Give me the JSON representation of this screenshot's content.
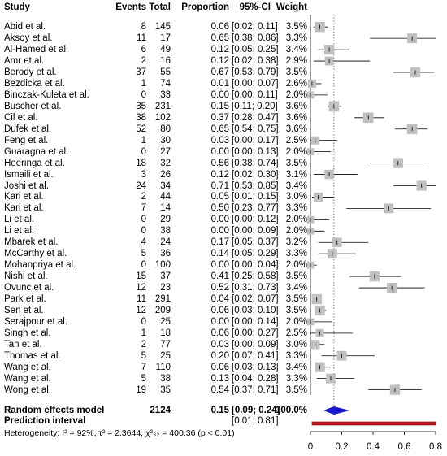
{
  "headers": {
    "study": "Study",
    "events": "Events",
    "total": "Total",
    "proportion": "Proportion",
    "ci": "95%-CI",
    "weight": "Weight"
  },
  "studies": [
    {
      "study": "Abid et al.",
      "events": "8",
      "total": "145",
      "proportion": "0.06",
      "ci": "[0.02; 0.11]",
      "weight": "3.5%"
    },
    {
      "study": "Aksoy et al.",
      "events": "11",
      "total": "17",
      "proportion": "0.65",
      "ci": "[0.38; 0.86]",
      "weight": "3.3%"
    },
    {
      "study": "Al-Hamed et al.",
      "events": "6",
      "total": "49",
      "proportion": "0.12",
      "ci": "[0.05; 0.25]",
      "weight": "3.4%"
    },
    {
      "study": "Amr et al.",
      "events": "2",
      "total": "16",
      "proportion": "0.12",
      "ci": "[0.02; 0.38]",
      "weight": "2.9%"
    },
    {
      "study": "Berody et al.",
      "events": "37",
      "total": "55",
      "proportion": "0.67",
      "ci": "[0.53; 0.79]",
      "weight": "3.5%"
    },
    {
      "study": "Bezdicka et al.",
      "events": "1",
      "total": "74",
      "proportion": "0.01",
      "ci": "[0.00; 0.07]",
      "weight": "2.6%"
    },
    {
      "study": "Binczak-Kuleta et al.",
      "events": "0",
      "total": "33",
      "proportion": "0.00",
      "ci": "[0.00; 0.11]",
      "weight": "2.0%"
    },
    {
      "study": "Buscher et al.",
      "events": "35",
      "total": "231",
      "proportion": "0.15",
      "ci": "[0.11; 0.20]",
      "weight": "3.6%"
    },
    {
      "study": "Cil et al.",
      "events": "38",
      "total": "102",
      "proportion": "0.37",
      "ci": "[0.28; 0.47]",
      "weight": "3.6%"
    },
    {
      "study": "Dufek et al.",
      "events": "52",
      "total": "80",
      "proportion": "0.65",
      "ci": "[0.54; 0.75]",
      "weight": "3.6%"
    },
    {
      "study": "Feng et al.",
      "events": "1",
      "total": "30",
      "proportion": "0.03",
      "ci": "[0.00; 0.17]",
      "weight": "2.5%"
    },
    {
      "study": "Guaragna et al.",
      "events": "0",
      "total": "27",
      "proportion": "0.00",
      "ci": "[0.00; 0.13]",
      "weight": "2.0%"
    },
    {
      "study": "Heeringa et al.",
      "events": "18",
      "total": "32",
      "proportion": "0.56",
      "ci": "[0.38; 0.74]",
      "weight": "3.5%"
    },
    {
      "study": "Ismaili et al.",
      "events": "3",
      "total": "26",
      "proportion": "0.12",
      "ci": "[0.02; 0.30]",
      "weight": "3.1%"
    },
    {
      "study": "Joshi et al.",
      "events": "24",
      "total": "34",
      "proportion": "0.71",
      "ci": "[0.53; 0.85]",
      "weight": "3.4%"
    },
    {
      "study": "Kari et al.",
      "events": "2",
      "total": "44",
      "proportion": "0.05",
      "ci": "[0.01; 0.15]",
      "weight": "3.0%"
    },
    {
      "study": "Kari et al.",
      "events": "7",
      "total": "14",
      "proportion": "0.50",
      "ci": "[0.23; 0.77]",
      "weight": "3.3%"
    },
    {
      "study": "Li et al.",
      "events": "0",
      "total": "29",
      "proportion": "0.00",
      "ci": "[0.00; 0.12]",
      "weight": "2.0%"
    },
    {
      "study": "Li et al.",
      "events": "0",
      "total": "38",
      "proportion": "0.00",
      "ci": "[0.00; 0.09]",
      "weight": "2.0%"
    },
    {
      "study": "Mbarek et al.",
      "events": "4",
      "total": "24",
      "proportion": "0.17",
      "ci": "[0.05; 0.37]",
      "weight": "3.2%"
    },
    {
      "study": "McCarthy et al.",
      "events": "5",
      "total": "36",
      "proportion": "0.14",
      "ci": "[0.05; 0.29]",
      "weight": "3.3%"
    },
    {
      "study": "Mohanpriya et al.",
      "events": "0",
      "total": "100",
      "proportion": "0.00",
      "ci": "[0.00; 0.04]",
      "weight": "2.0%"
    },
    {
      "study": "Nishi et al.",
      "events": "15",
      "total": "37",
      "proportion": "0.41",
      "ci": "[0.25; 0.58]",
      "weight": "3.5%"
    },
    {
      "study": "Ovunc et al.",
      "events": "12",
      "total": "23",
      "proportion": "0.52",
      "ci": "[0.31; 0.73]",
      "weight": "3.4%"
    },
    {
      "study": "Park et al.",
      "events": "11",
      "total": "291",
      "proportion": "0.04",
      "ci": "[0.02; 0.07]",
      "weight": "3.5%"
    },
    {
      "study": "Sen et al.",
      "events": "12",
      "total": "209",
      "proportion": "0.06",
      "ci": "[0.03; 0.10]",
      "weight": "3.5%"
    },
    {
      "study": "Serajpour et al.",
      "events": "0",
      "total": "25",
      "proportion": "0.00",
      "ci": "[0.00; 0.14]",
      "weight": "2.0%"
    },
    {
      "study": "Singh et al.",
      "events": "1",
      "total": "18",
      "proportion": "0.06",
      "ci": "[0.00; 0.27]",
      "weight": "2.5%"
    },
    {
      "study": "Tan et al.",
      "events": "2",
      "total": "77",
      "proportion": "0.03",
      "ci": "[0.00; 0.09]",
      "weight": "3.0%"
    },
    {
      "study": "Thomas et al.",
      "events": "5",
      "total": "25",
      "proportion": "0.20",
      "ci": "[0.07; 0.41]",
      "weight": "3.3%"
    },
    {
      "study": "Wang et al.",
      "events": "7",
      "total": "110",
      "proportion": "0.06",
      "ci": "[0.03; 0.13]",
      "weight": "3.4%"
    },
    {
      "study": "Wang et al.",
      "events": "5",
      "total": "38",
      "proportion": "0.13",
      "ci": "[0.04; 0.28]",
      "weight": "3.3%"
    },
    {
      "study": "Wong et al.",
      "events": "19",
      "total": "35",
      "proportion": "0.54",
      "ci": "[0.37; 0.71]",
      "weight": "3.5%"
    }
  ],
  "summary": {
    "random_label": "Random effects model",
    "random_total": "2124",
    "random_proportion": "0.15",
    "random_ci": "[0.09; 0.24]",
    "random_weight": "100.0%",
    "prediction_label": "Prediction interval",
    "prediction_ci": "[0.01; 0.81]",
    "heterogeneity": "Heterogeneity: I² = 92%, τ² = 2.3644, χ²₃₂ = 400.36 (p < 0.01)"
  },
  "colors": {
    "box": "#c0c0c0",
    "diamond": "#1a1acc",
    "prediction": "#c0181c",
    "refline": "#808080"
  },
  "chart_data": {
    "type": "forest",
    "xlim": [
      0,
      0.8
    ],
    "x_ticks": [
      "0",
      "0.2",
      "0.4",
      "0.6",
      "0.8"
    ],
    "reference_line": 0.15,
    "points": [
      {
        "est": 0.06,
        "lo": 0.02,
        "hi": 0.11,
        "w": 3.5
      },
      {
        "est": 0.65,
        "lo": 0.38,
        "hi": 0.86,
        "w": 3.3
      },
      {
        "est": 0.12,
        "lo": 0.05,
        "hi": 0.25,
        "w": 3.4
      },
      {
        "est": 0.12,
        "lo": 0.02,
        "hi": 0.38,
        "w": 2.9
      },
      {
        "est": 0.67,
        "lo": 0.53,
        "hi": 0.79,
        "w": 3.5
      },
      {
        "est": 0.01,
        "lo": 0.0,
        "hi": 0.07,
        "w": 2.6
      },
      {
        "est": 0.0,
        "lo": 0.0,
        "hi": 0.11,
        "w": 2.0
      },
      {
        "est": 0.15,
        "lo": 0.11,
        "hi": 0.2,
        "w": 3.6
      },
      {
        "est": 0.37,
        "lo": 0.28,
        "hi": 0.47,
        "w": 3.6
      },
      {
        "est": 0.65,
        "lo": 0.54,
        "hi": 0.75,
        "w": 3.6
      },
      {
        "est": 0.03,
        "lo": 0.0,
        "hi": 0.17,
        "w": 2.5
      },
      {
        "est": 0.0,
        "lo": 0.0,
        "hi": 0.13,
        "w": 2.0
      },
      {
        "est": 0.56,
        "lo": 0.38,
        "hi": 0.74,
        "w": 3.5
      },
      {
        "est": 0.12,
        "lo": 0.02,
        "hi": 0.3,
        "w": 3.1
      },
      {
        "est": 0.71,
        "lo": 0.53,
        "hi": 0.85,
        "w": 3.4
      },
      {
        "est": 0.05,
        "lo": 0.01,
        "hi": 0.15,
        "w": 3.0
      },
      {
        "est": 0.5,
        "lo": 0.23,
        "hi": 0.77,
        "w": 3.3
      },
      {
        "est": 0.0,
        "lo": 0.0,
        "hi": 0.12,
        "w": 2.0
      },
      {
        "est": 0.0,
        "lo": 0.0,
        "hi": 0.09,
        "w": 2.0
      },
      {
        "est": 0.17,
        "lo": 0.05,
        "hi": 0.37,
        "w": 3.2
      },
      {
        "est": 0.14,
        "lo": 0.05,
        "hi": 0.29,
        "w": 3.3
      },
      {
        "est": 0.0,
        "lo": 0.0,
        "hi": 0.04,
        "w": 2.0
      },
      {
        "est": 0.41,
        "lo": 0.25,
        "hi": 0.58,
        "w": 3.5
      },
      {
        "est": 0.52,
        "lo": 0.31,
        "hi": 0.73,
        "w": 3.4
      },
      {
        "est": 0.04,
        "lo": 0.02,
        "hi": 0.07,
        "w": 3.5
      },
      {
        "est": 0.06,
        "lo": 0.03,
        "hi": 0.1,
        "w": 3.5
      },
      {
        "est": 0.0,
        "lo": 0.0,
        "hi": 0.14,
        "w": 2.0
      },
      {
        "est": 0.06,
        "lo": 0.0,
        "hi": 0.27,
        "w": 2.5
      },
      {
        "est": 0.03,
        "lo": 0.0,
        "hi": 0.09,
        "w": 3.0
      },
      {
        "est": 0.2,
        "lo": 0.07,
        "hi": 0.41,
        "w": 3.3
      },
      {
        "est": 0.06,
        "lo": 0.03,
        "hi": 0.13,
        "w": 3.4
      },
      {
        "est": 0.13,
        "lo": 0.04,
        "hi": 0.28,
        "w": 3.3
      },
      {
        "est": 0.54,
        "lo": 0.37,
        "hi": 0.71,
        "w": 3.5
      }
    ],
    "random_effects": {
      "est": 0.15,
      "lo": 0.09,
      "hi": 0.24
    },
    "prediction_interval": {
      "lo": 0.01,
      "hi": 0.81
    }
  }
}
